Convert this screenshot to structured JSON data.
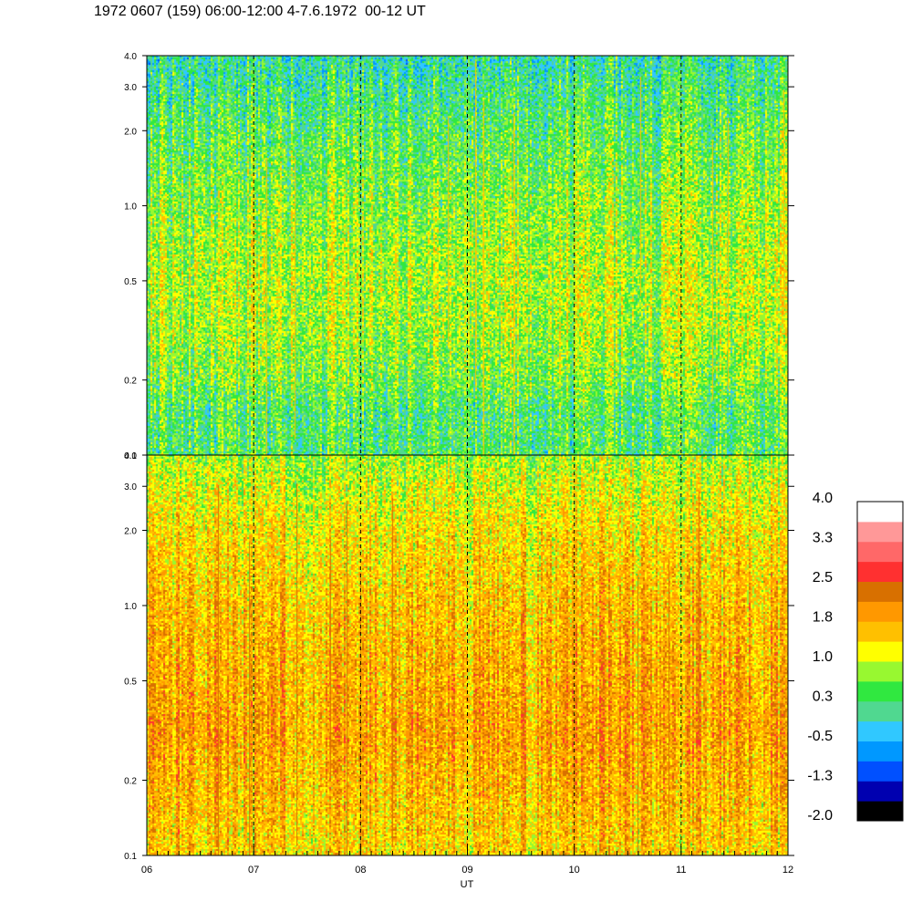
{
  "title": "1972 0607 (159) 06:00-12:00 4-7.6.1972  00-12 UT",
  "chart_data": {
    "type": "heatmap",
    "xlabel": "UT",
    "x_ticks": [
      "06",
      "07",
      "08",
      "09",
      "10",
      "11",
      "12"
    ],
    "xlim": [
      6,
      12
    ],
    "x_dashed_hours": [
      7,
      8,
      9,
      10,
      11
    ],
    "y_scale": "log",
    "ylim": [
      0.1,
      4.0
    ],
    "y_ticks": [
      0.1,
      0.2,
      0.5,
      1.0,
      2.0,
      3.0,
      4.0
    ],
    "y_tick_labels": [
      "0.1",
      "0.2",
      "0.5",
      "1.0",
      "2.0",
      "3.0",
      "4.0"
    ],
    "panels": [
      {
        "name": "upper",
        "dominant_levels": "green-yellow (~0.3 to 1.4)",
        "profile_by_frequency": [
          {
            "freq": 0.1,
            "level": 0.4
          },
          {
            "freq": 0.15,
            "level": 0.4
          },
          {
            "freq": 0.2,
            "level": 0.65
          },
          {
            "freq": 0.3,
            "level": 0.85
          },
          {
            "freq": 0.5,
            "level": 0.95
          },
          {
            "freq": 1.0,
            "level": 0.75
          },
          {
            "freq": 2.0,
            "level": 0.45
          },
          {
            "freq": 4.0,
            "level": 0.05
          }
        ]
      },
      {
        "name": "lower",
        "dominant_levels": "yellow-orange (~1.0 to 2.2)",
        "profile_by_frequency": [
          {
            "freq": 0.1,
            "level": 1.45
          },
          {
            "freq": 0.2,
            "level": 1.7
          },
          {
            "freq": 0.3,
            "level": 1.85
          },
          {
            "freq": 0.5,
            "level": 1.75
          },
          {
            "freq": 1.0,
            "level": 1.6
          },
          {
            "freq": 2.0,
            "level": 1.35
          },
          {
            "freq": 3.0,
            "level": 1.05
          },
          {
            "freq": 4.0,
            "level": 0.8
          }
        ]
      }
    ],
    "colorbar": {
      "tick_labels": [
        "4.0",
        "3.3",
        "2.5",
        "1.8",
        "1.0",
        "0.3",
        "-0.5",
        "-1.3",
        "-2.0"
      ],
      "range": [
        -2.0,
        4.0
      ],
      "colors": [
        "#000000",
        "#0000b0",
        "#0050ff",
        "#0098ff",
        "#30c8ff",
        "#50d890",
        "#30e840",
        "#98f830",
        "#ffff00",
        "#ffc000",
        "#ff9800",
        "#d87000",
        "#ff3030",
        "#ff6868",
        "#ff9898",
        "#ffffff"
      ]
    }
  }
}
